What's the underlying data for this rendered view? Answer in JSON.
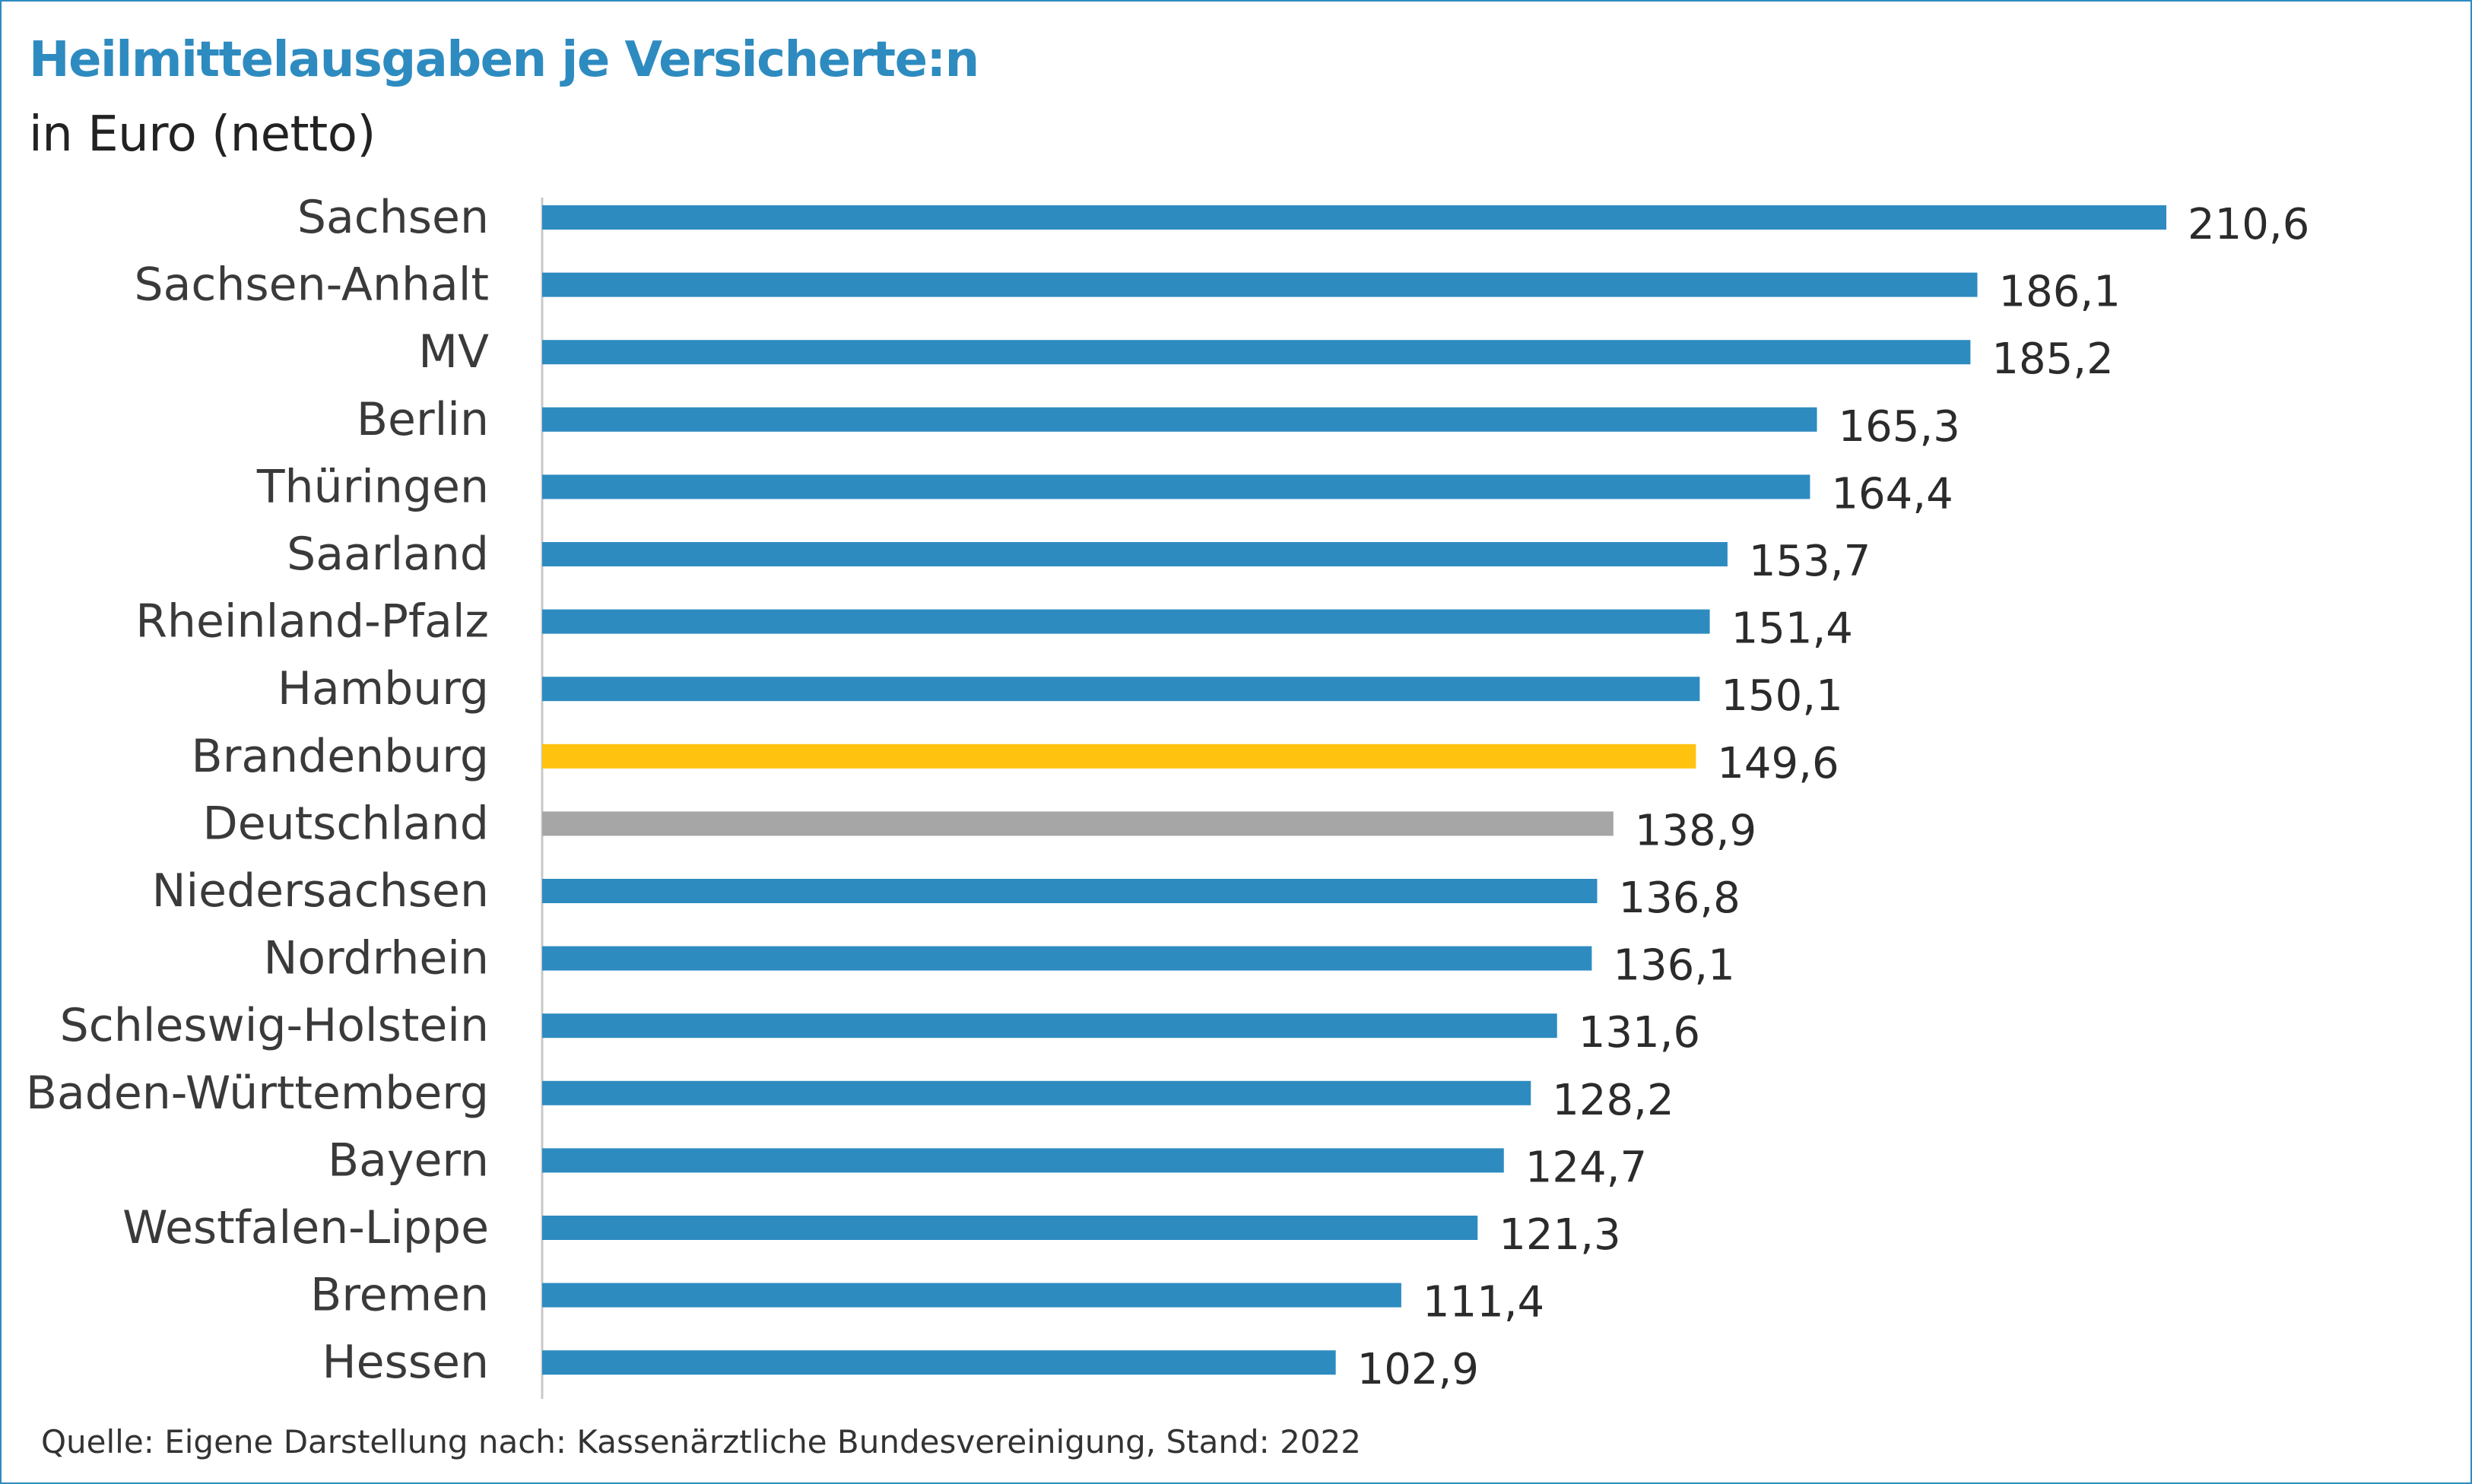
{
  "header": {
    "title": "Heilmittelausgaben je Versicherte:n",
    "subtitle": "in Euro (netto)"
  },
  "footer": {
    "source": "Quelle: Eigene Darstellung nach: Kassenärztliche Bundesvereinigung, Stand: 2022"
  },
  "colors": {
    "default_bar": "#2e8bc0",
    "highlight_bar": "#ffc20e",
    "reference_bar": "#a6a6a6",
    "title": "#2e8bc0",
    "frame": "#2e8bc0"
  },
  "chart_data": {
    "type": "bar",
    "orientation": "horizontal",
    "title": "Heilmittelausgaben je Versicherte:n",
    "subtitle": "in Euro (netto)",
    "xlim": [
      0,
      220
    ],
    "grid": false,
    "categories": [
      "Sachsen",
      "Sachsen-Anhalt",
      "MV",
      "Berlin",
      "Thüringen",
      "Saarland",
      "Rheinland-Pfalz",
      "Hamburg",
      "Brandenburg",
      "Deutschland",
      "Niedersachsen",
      "Nordrhein",
      "Schleswig-Holstein",
      "Baden-Württemberg",
      "Bayern",
      "Westfalen-Lippe",
      "Bremen",
      "Hessen"
    ],
    "values": [
      210.6,
      186.1,
      185.2,
      165.3,
      164.4,
      153.7,
      151.4,
      150.1,
      149.6,
      138.9,
      136.8,
      136.1,
      131.6,
      128.2,
      124.7,
      121.3,
      111.4,
      102.9
    ],
    "value_labels": [
      "210,6",
      "186,1",
      "185,2",
      "165,3",
      "164,4",
      "153,7",
      "151,4",
      "150,1",
      "149,6",
      "138,9",
      "136,8",
      "136,1",
      "131,6",
      "128,2",
      "124,7",
      "121,3",
      "111,4",
      "102,9"
    ],
    "highlight": "Brandenburg",
    "reference": "Deutschland"
  }
}
